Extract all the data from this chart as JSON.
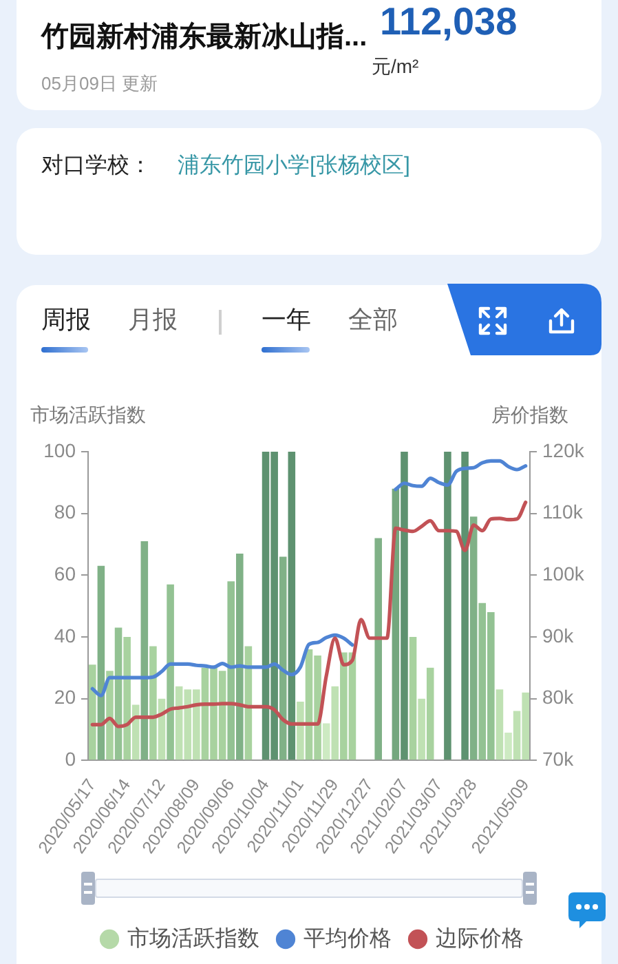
{
  "chart_data": {
    "type": "bar",
    "title": "竹园新村浦东最新冰山指...",
    "annotations": [
      "112,038",
      "元/m²",
      "05月09日 更新",
      "对口学校：",
      "浦东竹园小学[张杨校区]",
      "周报",
      "月报",
      "一年",
      "全部"
    ],
    "ylabel": "市场活跃指数",
    "y2label": "房价指数",
    "categories": [
      "2020/05/17",
      null,
      null,
      null,
      "2020/06/14",
      null,
      null,
      null,
      "2020/07/12",
      null,
      null,
      null,
      "2020/08/09",
      null,
      null,
      null,
      "2020/09/06",
      null,
      null,
      null,
      "2020/10/04",
      null,
      null,
      null,
      "2020/11/01",
      null,
      null,
      null,
      "2020/11/29",
      null,
      null,
      null,
      "2020/12/27",
      null,
      null,
      null,
      "2021/02/07",
      null,
      null,
      null,
      "2021/03/07",
      null,
      null,
      null,
      "2021/03/28",
      null,
      null,
      null,
      null,
      null,
      "2021/05/09"
    ],
    "series": [
      {
        "name": "市场活跃指数",
        "color": "#b5d9a8",
        "values": [
          31,
          63,
          29,
          43,
          40,
          18,
          71,
          37,
          20,
          57,
          24,
          23,
          23,
          30,
          30,
          29,
          58,
          67,
          37,
          null,
          100,
          100,
          66,
          100,
          19,
          36,
          34,
          12,
          24,
          35,
          35,
          null,
          null,
          72,
          null,
          88,
          100,
          40,
          20,
          30,
          null,
          100,
          null,
          100,
          79,
          51,
          48,
          23,
          9,
          16,
          22
        ],
        "colors": [
          "#a8d29f",
          "#80b187",
          "#a8d29f",
          "#93c293",
          "#a8d29f",
          "#bfe1b3",
          "#80b187",
          "#a8d29f",
          "#bfe1b3",
          "#93c293",
          "#bfe1b3",
          "#bfe1b3",
          "#bfe1b3",
          "#a8d29f",
          "#a8d29f",
          "#a8d29f",
          "#93c293",
          "#80b187",
          "#a8d29f",
          null,
          "#5e9270",
          "#5e9270",
          "#80b187",
          "#5e9270",
          "#bfe1b3",
          "#a8d29f",
          "#a8d29f",
          "#cdeac2",
          "#bfe1b3",
          "#a8d29f",
          "#a8d29f",
          null,
          null,
          "#80b187",
          null,
          "#74a77e",
          "#5e9270",
          "#a8d29f",
          "#bfe1b3",
          "#a8d29f",
          null,
          "#5e9270",
          null,
          "#5e9270",
          "#80b187",
          "#93c293",
          "#93c293",
          "#bfe1b3",
          "#cdeac2",
          "#bfe1b3",
          "#bfe1b3"
        ]
      },
      {
        "name": "平均价格",
        "type": "line",
        "axis": "y2",
        "color": "#4f84d4",
        "values": [
          81600,
          80500,
          83400,
          83400,
          83400,
          83400,
          83400,
          83500,
          84400,
          85600,
          85600,
          85600,
          85400,
          85300,
          85100,
          85700,
          85100,
          85300,
          85100,
          85100,
          85100,
          85600,
          84600,
          83900,
          85100,
          88800,
          89100,
          89900,
          90300,
          89800,
          88700,
          null,
          null,
          null,
          null,
          113900,
          114900,
          114500,
          114400,
          115700,
          115000,
          114600,
          116800,
          117300,
          117400,
          118200,
          118500,
          118500,
          117600,
          117100,
          117700
        ]
      },
      {
        "name": "边际价格",
        "type": "line",
        "axis": "y2",
        "color": "#c25256",
        "values": [
          75800,
          75800,
          76800,
          75500,
          75800,
          77000,
          77000,
          77000,
          77500,
          78300,
          78500,
          78700,
          79000,
          79100,
          79100,
          79200,
          79200,
          79000,
          78700,
          78700,
          78700,
          78200,
          76600,
          75900,
          75900,
          75900,
          75900,
          83700,
          89800,
          85500,
          86200,
          92800,
          89800,
          89800,
          89800,
          107600,
          107300,
          107100,
          107900,
          108800,
          107200,
          107200,
          107100,
          104000,
          108100,
          107200,
          109100,
          109200,
          109000,
          109100,
          111800
        ]
      }
    ],
    "ylim": [
      0,
      100
    ],
    "yticks": [
      0,
      20,
      40,
      60,
      80,
      100
    ],
    "y2lim": [
      70000,
      120000
    ],
    "y2ticks": [
      {
        "value": 70000,
        "label": "70k"
      },
      {
        "value": 80000,
        "label": "80k"
      },
      {
        "value": 90000,
        "label": "90k"
      },
      {
        "value": 100000,
        "label": "100k"
      },
      {
        "value": 110000,
        "label": "110k"
      },
      {
        "value": 120000,
        "label": "120k"
      }
    ],
    "legend": "bottom"
  }
}
